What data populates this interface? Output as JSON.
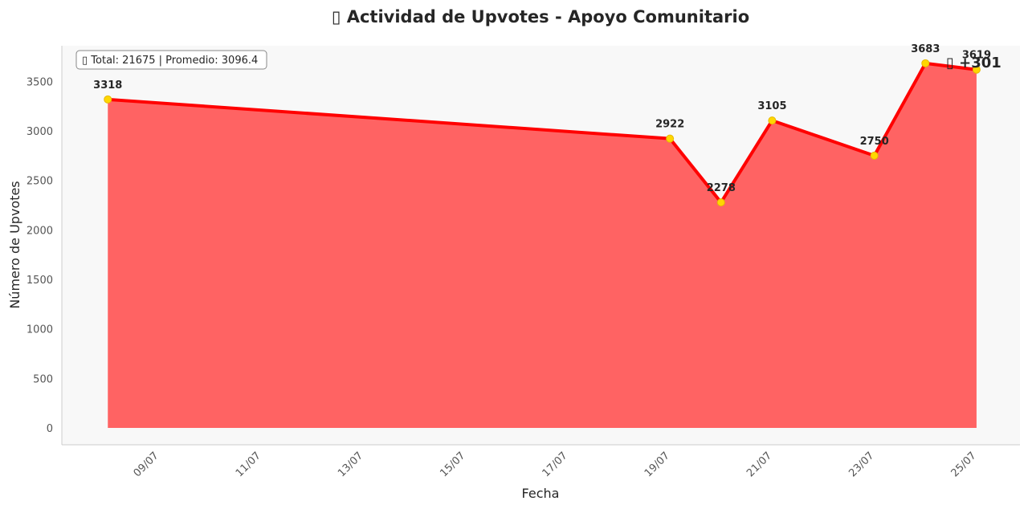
{
  "chart_data": {
    "type": "area",
    "title": "▯ Actividad de Upvotes - Apoyo Comunitario",
    "xlabel": "Fecha",
    "ylabel": "Número de Upvotes",
    "ylim": [
      -170,
      3860
    ],
    "yticks": [
      0,
      500,
      1000,
      1500,
      2000,
      2500,
      3000,
      3500
    ],
    "xlim": [
      -0.9,
      17.85
    ],
    "xticks": [
      {
        "day": 1,
        "label": "09/07"
      },
      {
        "day": 3,
        "label": "11/07"
      },
      {
        "day": 5,
        "label": "13/07"
      },
      {
        "day": 7,
        "label": "15/07"
      },
      {
        "day": 9,
        "label": "17/07"
      },
      {
        "day": 11,
        "label": "19/07"
      },
      {
        "day": 13,
        "label": "21/07"
      },
      {
        "day": 15,
        "label": "23/07"
      },
      {
        "day": 17,
        "label": "25/07"
      }
    ],
    "series": [
      {
        "name": "Upvotes",
        "color": "#ff0000",
        "fill_color": "#ff6363",
        "marker_color": "#ffd700",
        "x": [
          0,
          11,
          12,
          13,
          15,
          16,
          17
        ],
        "values": [
          3318,
          2922,
          2278,
          3105,
          2750,
          3683,
          3619
        ],
        "labels": [
          "3318",
          "2922",
          "2278",
          "3105",
          "2750",
          "3683",
          "3619"
        ]
      }
    ],
    "summary": "▯ Total: 21675 | Promedio: 3096.4",
    "delta_annotation": "▯ +301",
    "grid": false,
    "background": "#f8f8f8"
  }
}
